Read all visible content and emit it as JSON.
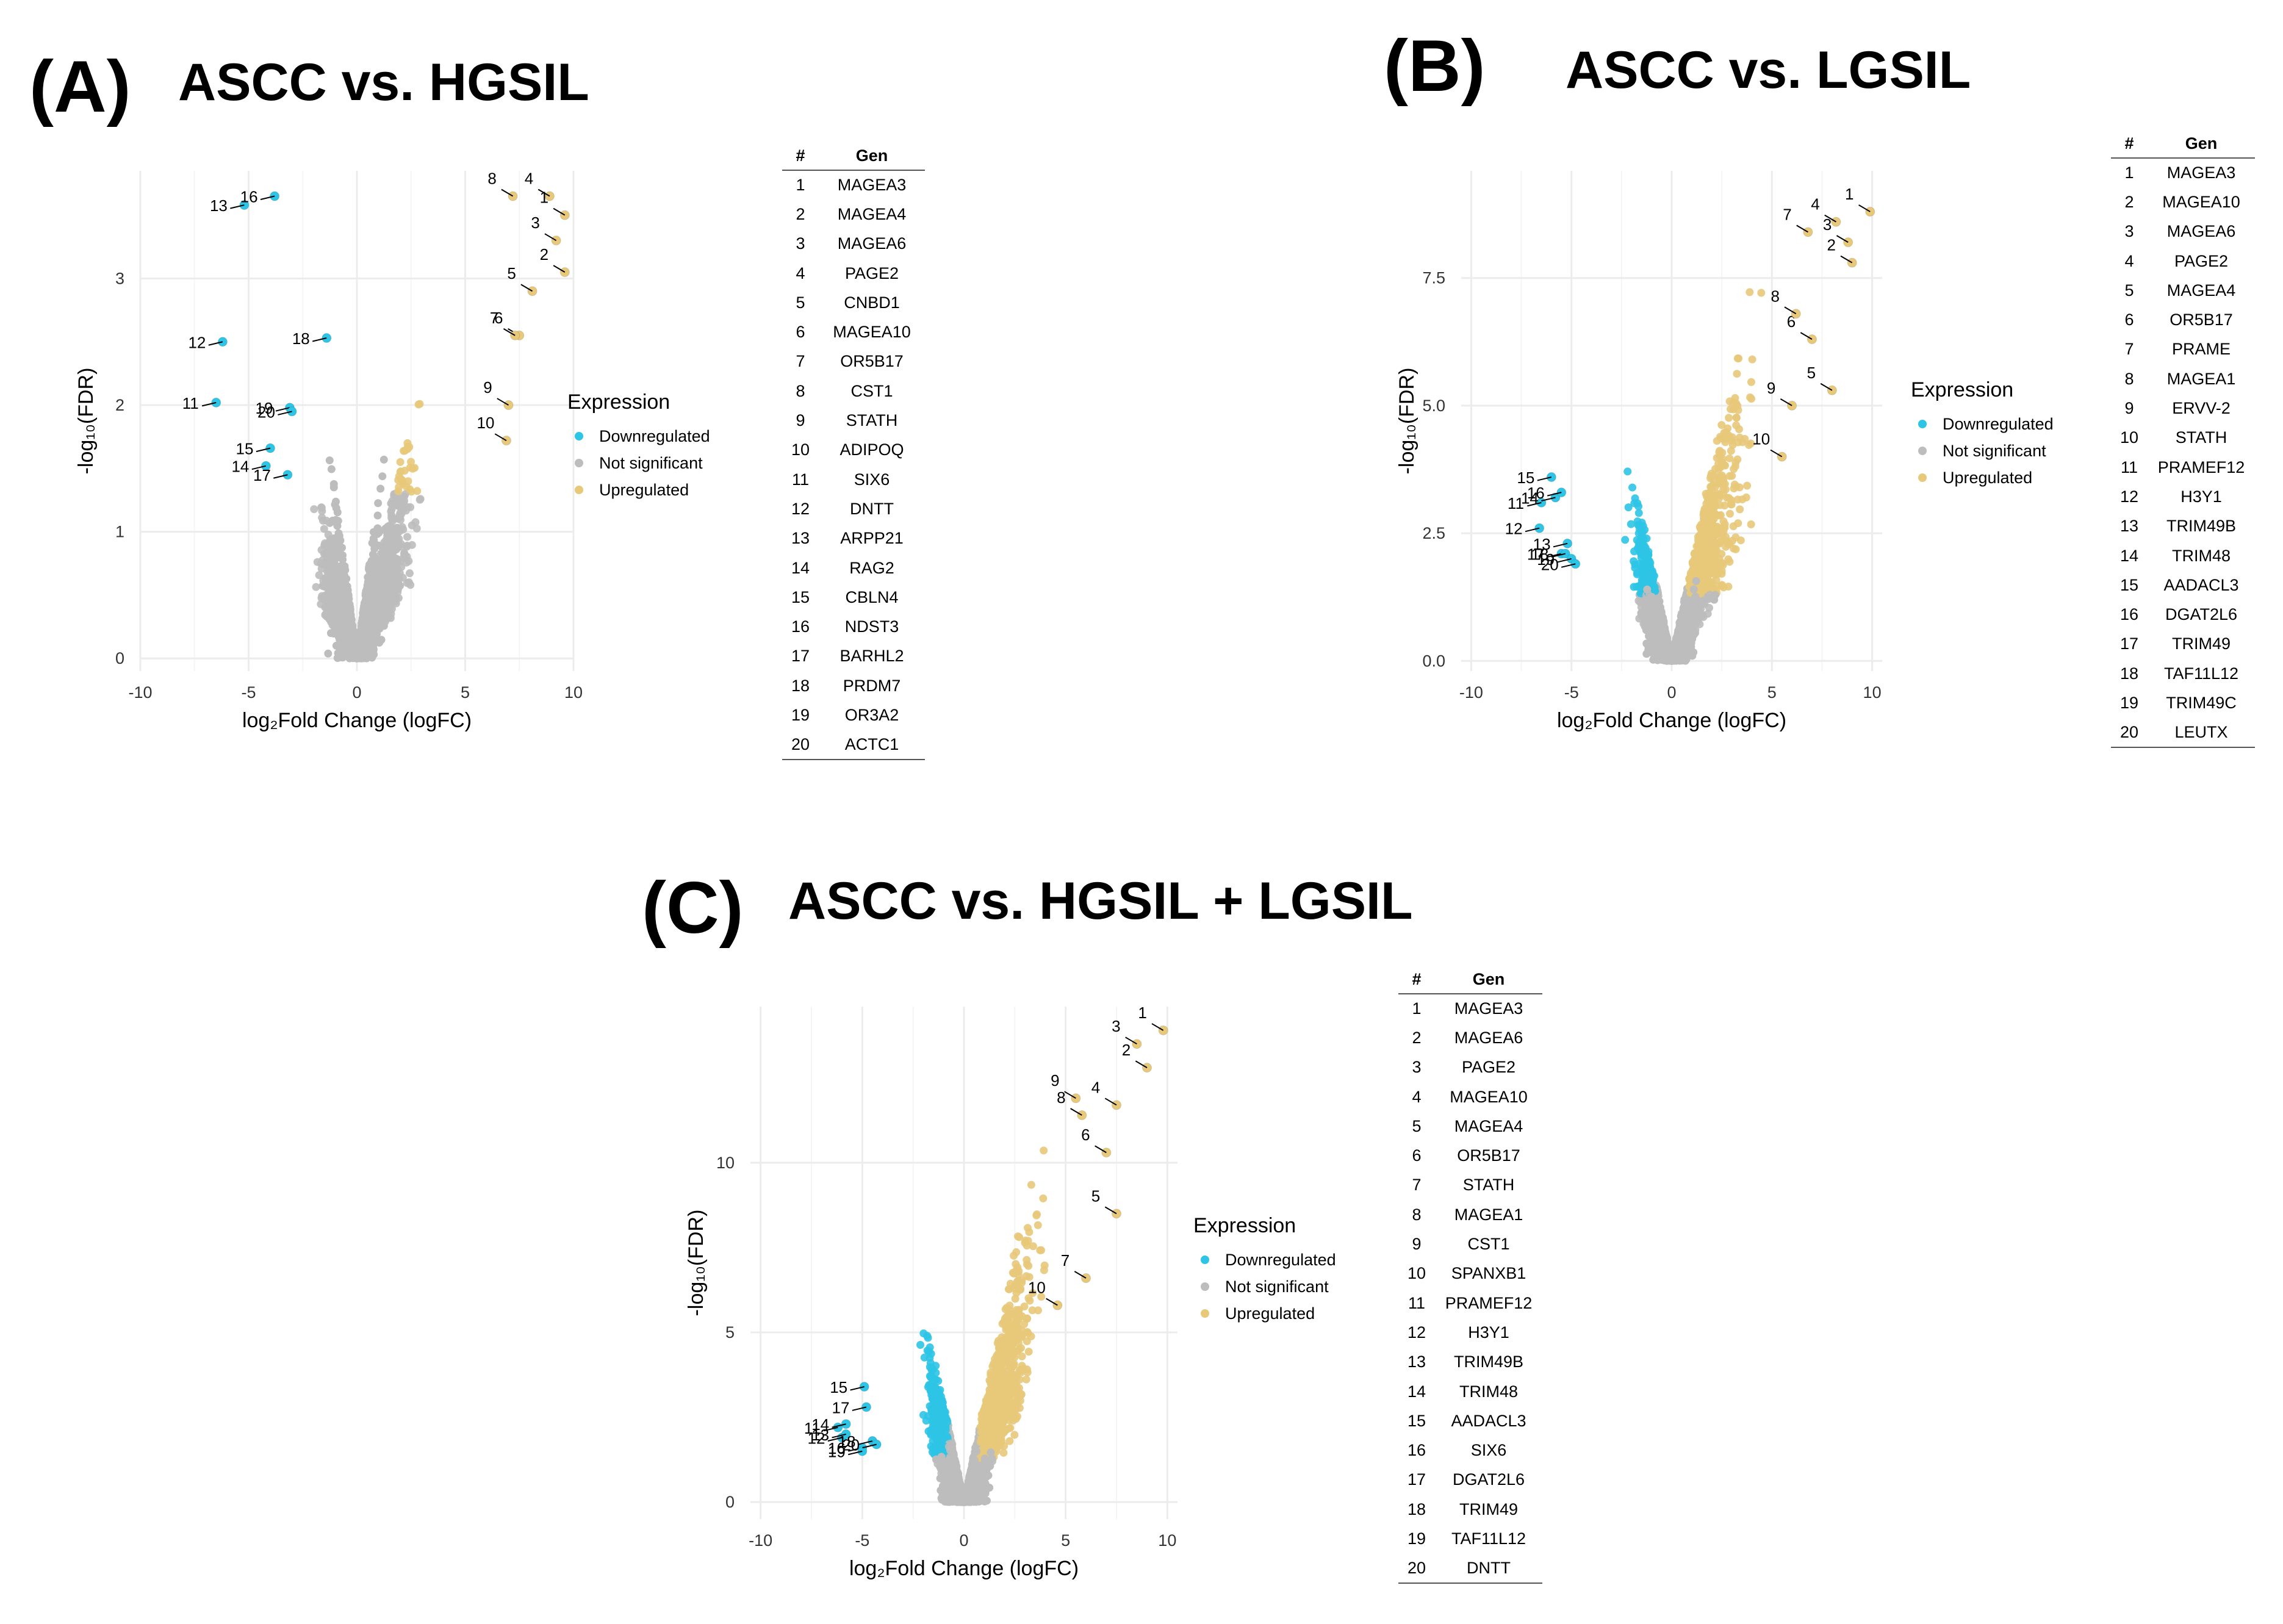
{
  "colors": {
    "down": "#2ec4e6",
    "ns": "#bdbdbd",
    "up": "#e8c97a",
    "grid": "#ececec"
  },
  "legend": {
    "title": "Expression",
    "items": [
      "Downregulated",
      "Not significant",
      "Upregulated"
    ]
  },
  "table_headers": {
    "num": "#",
    "gene": "Gen"
  },
  "chart_data": [
    {
      "type": "scatter",
      "letter": "(A)",
      "title": "ASCC vs. HGSIL",
      "xlabel": "log₂Fold Change (logFC)",
      "ylabel": "-log₁₀(FDR)",
      "xlim": [
        -10,
        10
      ],
      "ylim": [
        -0.1,
        3.85
      ],
      "xticks": [
        "-10",
        "-5",
        "0",
        "5",
        "10"
      ],
      "yticks": [
        "0",
        "1",
        "2",
        "3"
      ],
      "genes": [
        "MAGEA3",
        "MAGEA4",
        "MAGEA6",
        "PAGE2",
        "CNBD1",
        "MAGEA10",
        "OR5B17",
        "CST1",
        "STATH",
        "ADIPOQ",
        "SIX6",
        "DNTT",
        "ARPP21",
        "RAG2",
        "CBLN4",
        "NDST3",
        "BARHL2",
        "PRDM7",
        "OR3A2",
        "ACTC1"
      ],
      "labeled_points": [
        {
          "label": "1",
          "x": 9.6,
          "y": 3.5
        },
        {
          "label": "2",
          "x": 9.6,
          "y": 3.05
        },
        {
          "label": "3",
          "x": 9.2,
          "y": 3.3
        },
        {
          "label": "4",
          "x": 8.9,
          "y": 3.65
        },
        {
          "label": "5",
          "x": 8.1,
          "y": 2.9
        },
        {
          "label": "6",
          "x": 7.5,
          "y": 2.55
        },
        {
          "label": "7",
          "x": 7.3,
          "y": 2.55
        },
        {
          "label": "8",
          "x": 7.2,
          "y": 3.65
        },
        {
          "label": "9",
          "x": 7.0,
          "y": 2.0
        },
        {
          "label": "10",
          "x": 6.9,
          "y": 1.72
        },
        {
          "label": "11",
          "x": -6.5,
          "y": 2.02
        },
        {
          "label": "12",
          "x": -6.2,
          "y": 2.5
        },
        {
          "label": "13",
          "x": -5.2,
          "y": 3.58
        },
        {
          "label": "14",
          "x": -4.2,
          "y": 1.52
        },
        {
          "label": "15",
          "x": -4.0,
          "y": 1.66
        },
        {
          "label": "16",
          "x": -3.8,
          "y": 3.65
        },
        {
          "label": "17",
          "x": -3.2,
          "y": 1.45
        },
        {
          "label": "18",
          "x": -1.4,
          "y": 2.53
        },
        {
          "label": "19",
          "x": -3.1,
          "y": 1.98
        },
        {
          "label": "20",
          "x": -3.0,
          "y": 1.95
        }
      ]
    },
    {
      "type": "scatter",
      "letter": "(B)",
      "title": "ASCC vs. LGSIL",
      "xlabel": "log₂Fold Change (logFC)",
      "ylabel": "-log₁₀(FDR)",
      "xlim": [
        -10.5,
        10.5
      ],
      "ylim": [
        -0.2,
        9.6
      ],
      "xticks": [
        "-10",
        "-5",
        "0",
        "5",
        "10"
      ],
      "yticks": [
        "0.0",
        "2.5",
        "5.0",
        "7.5"
      ],
      "genes": [
        "MAGEA3",
        "MAGEA10",
        "MAGEA6",
        "PAGE2",
        "MAGEA4",
        "OR5B17",
        "PRAME",
        "MAGEA1",
        "ERVV-2",
        "STATH",
        "PRAMEF12",
        "H3Y1",
        "TRIM49B",
        "TRIM48",
        "AADACL3",
        "DGAT2L6",
        "TRIM49",
        "TAF11L12",
        "TRIM49C",
        "LEUTX"
      ],
      "labeled_points": [
        {
          "label": "1",
          "x": 9.9,
          "y": 8.8
        },
        {
          "label": "2",
          "x": 9.0,
          "y": 7.8
        },
        {
          "label": "3",
          "x": 8.8,
          "y": 8.2
        },
        {
          "label": "4",
          "x": 8.2,
          "y": 8.6
        },
        {
          "label": "5",
          "x": 8.0,
          "y": 5.3
        },
        {
          "label": "6",
          "x": 7.0,
          "y": 6.3
        },
        {
          "label": "7",
          "x": 6.8,
          "y": 8.4
        },
        {
          "label": "8",
          "x": 6.2,
          "y": 6.8
        },
        {
          "label": "9",
          "x": 6.0,
          "y": 5.0
        },
        {
          "label": "10",
          "x": 5.5,
          "y": 4.0
        },
        {
          "label": "11",
          "x": -6.5,
          "y": 3.1
        },
        {
          "label": "12",
          "x": -6.6,
          "y": 2.6
        },
        {
          "label": "13",
          "x": -5.2,
          "y": 2.3
        },
        {
          "label": "14",
          "x": -5.8,
          "y": 3.2
        },
        {
          "label": "15",
          "x": -6.0,
          "y": 3.6
        },
        {
          "label": "16",
          "x": -5.5,
          "y": 3.3
        },
        {
          "label": "17",
          "x": -5.5,
          "y": 2.1
        },
        {
          "label": "18",
          "x": -5.3,
          "y": 2.1
        },
        {
          "label": "19",
          "x": -5.0,
          "y": 2.0
        },
        {
          "label": "20",
          "x": -4.8,
          "y": 1.9
        }
      ]
    },
    {
      "type": "scatter",
      "letter": "(C)",
      "title": "ASCC vs.  HGSIL + LGSIL",
      "xlabel": "log₂Fold Change (logFC)",
      "ylabel": "-log₁₀(FDR)",
      "xlim": [
        -10.5,
        10.5
      ],
      "ylim": [
        -0.5,
        14.6
      ],
      "xticks": [
        "-10",
        "-5",
        "0",
        "5",
        "10"
      ],
      "yticks": [
        "0",
        "5",
        "10"
      ],
      "genes": [
        "MAGEA3",
        "MAGEA6",
        "PAGE2",
        "MAGEA10",
        "MAGEA4",
        "OR5B17",
        "STATH",
        "MAGEA1",
        "CST1",
        "SPANXB1",
        "PRAMEF12",
        "H3Y1",
        "TRIM49B",
        "TRIM48",
        "AADACL3",
        "SIX6",
        "DGAT2L6",
        "TRIM49",
        "TAF11L12",
        "DNTT"
      ],
      "labeled_points": [
        {
          "label": "1",
          "x": 9.8,
          "y": 13.9
        },
        {
          "label": "2",
          "x": 9.0,
          "y": 12.8
        },
        {
          "label": "3",
          "x": 8.5,
          "y": 13.5
        },
        {
          "label": "4",
          "x": 7.5,
          "y": 11.7
        },
        {
          "label": "5",
          "x": 7.5,
          "y": 8.5
        },
        {
          "label": "6",
          "x": 7.0,
          "y": 10.3
        },
        {
          "label": "7",
          "x": 6.0,
          "y": 6.6
        },
        {
          "label": "8",
          "x": 5.8,
          "y": 11.4
        },
        {
          "label": "9",
          "x": 5.5,
          "y": 11.9
        },
        {
          "label": "10",
          "x": 4.6,
          "y": 5.8
        },
        {
          "label": "11",
          "x": -6.2,
          "y": 2.2
        },
        {
          "label": "12",
          "x": -6.0,
          "y": 1.9
        },
        {
          "label": "13",
          "x": -5.8,
          "y": 2.0
        },
        {
          "label": "14",
          "x": -5.8,
          "y": 2.3
        },
        {
          "label": "15",
          "x": -4.9,
          "y": 3.4
        },
        {
          "label": "16",
          "x": -5.0,
          "y": 1.6
        },
        {
          "label": "17",
          "x": -4.8,
          "y": 2.8
        },
        {
          "label": "18",
          "x": -4.5,
          "y": 1.8
        },
        {
          "label": "19",
          "x": -5.0,
          "y": 1.5
        },
        {
          "label": "20",
          "x": -4.3,
          "y": 1.7
        }
      ]
    }
  ]
}
